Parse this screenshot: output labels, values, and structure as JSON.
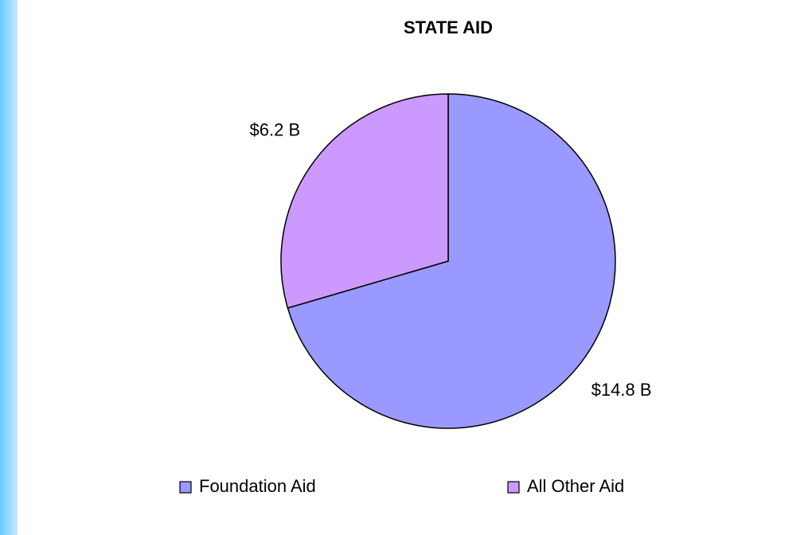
{
  "chart_data": {
    "type": "pie",
    "title": "STATE AID",
    "categories": [
      "Foundation Aid",
      "All Other Aid"
    ],
    "values": [
      14.8,
      6.2
    ],
    "value_labels": [
      "$14.8 B",
      "$6.2 B"
    ],
    "colors": [
      "#9999ff",
      "#cc99ff"
    ],
    "legend": "bottom"
  }
}
